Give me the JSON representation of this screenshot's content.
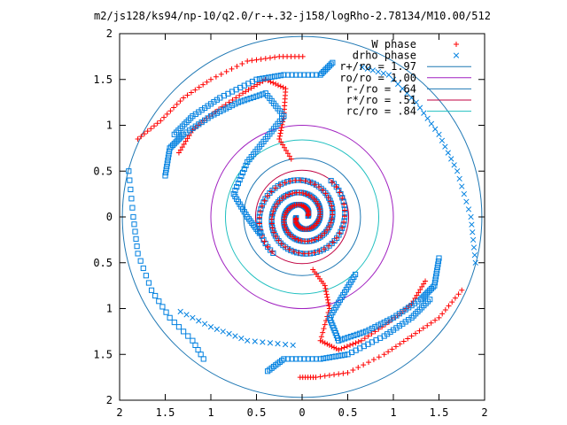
{
  "chart_data": {
    "type": "scatter",
    "title": "m2/js128/ks94/np-10/q2.0/r-+.32-j158/logRho-2.78134/M10.00/512",
    "xlabel": "",
    "ylabel": "",
    "xlim": [
      -2,
      2
    ],
    "ylim": [
      -2,
      2
    ],
    "x_tick_labels": [
      "2",
      "1.5",
      "1",
      "0.5",
      "0",
      "0.5",
      "1",
      "1.5",
      "2"
    ],
    "x_tick_values": [
      -2,
      -1.5,
      -1,
      -0.5,
      0,
      0.5,
      1,
      1.5,
      2
    ],
    "y_tick_labels": [
      "2",
      "1.5",
      "1",
      "0.5",
      "0",
      "0.5",
      "1",
      "1.5",
      "2"
    ],
    "y_tick_values": [
      2,
      1.5,
      1,
      0.5,
      0,
      -0.5,
      -1,
      -1.5,
      -2
    ],
    "grid": false,
    "legend_position": "top-right",
    "series": [
      {
        "name": "W phase",
        "marker": "plus",
        "color": "#ff0000"
      },
      {
        "name": "drho phase",
        "marker": "cross",
        "color": "#0080e0"
      }
    ],
    "circles": [
      {
        "name": "r+/ro = 1.97",
        "radius": 1.97,
        "color": "#1f78b4"
      },
      {
        "name": "ro/ro = 1.00",
        "radius": 1.0,
        "color": "#a020c0"
      },
      {
        "name": "r-/ro = .64",
        "radius": 0.64,
        "color": "#1f78b4"
      },
      {
        "name": "r*/ro = .51",
        "radius": 0.51,
        "color": "#c00040"
      },
      {
        "name": "rc/ro = .84",
        "radius": 0.84,
        "color": "#20c0c0"
      }
    ]
  }
}
